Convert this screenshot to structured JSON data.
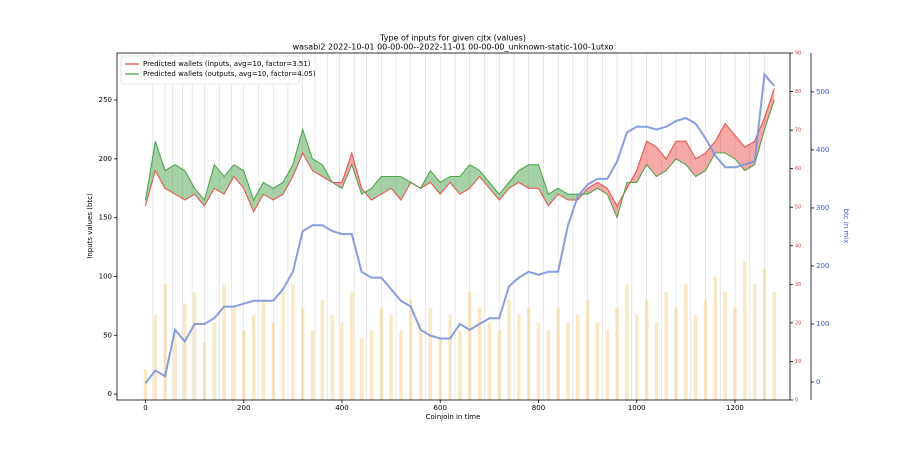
{
  "chart_data": {
    "type": "line",
    "title": "Type of inputs for given cjtx (values)",
    "subtitle": "wasabi2 2022-10-01 00-00-00--2022-11-01 00-00-00_unknown-static-100-1utxo",
    "x_label": "Coinjoin in time",
    "y_label": "Inputs values (btc)",
    "y3_label": "btc in mix",
    "legend": "upper left",
    "x": [
      0,
      20,
      40,
      60,
      80,
      100,
      120,
      140,
      160,
      180,
      200,
      220,
      240,
      260,
      280,
      300,
      320,
      340,
      360,
      380,
      400,
      420,
      440,
      460,
      480,
      500,
      520,
      540,
      560,
      580,
      600,
      620,
      640,
      660,
      680,
      700,
      720,
      740,
      760,
      780,
      800,
      820,
      840,
      860,
      880,
      900,
      920,
      940,
      960,
      980,
      1000,
      1020,
      1040,
      1060,
      1080,
      1100,
      1120,
      1140,
      1160,
      1180,
      1200,
      1220,
      1240,
      1260,
      1280
    ],
    "series": [
      {
        "name": "Predicted wallets (inputs, avg=10, factor=3.51)",
        "color": "#e8413c",
        "values": [
          160,
          190,
          175,
          170,
          165,
          170,
          160,
          175,
          170,
          185,
          175,
          155,
          170,
          165,
          170,
          185,
          205,
          190,
          185,
          180,
          180,
          205,
          175,
          165,
          170,
          175,
          165,
          180,
          175,
          180,
          170,
          180,
          170,
          175,
          185,
          175,
          165,
          175,
          180,
          175,
          175,
          160,
          170,
          165,
          165,
          175,
          180,
          175,
          160,
          175,
          190,
          215,
          210,
          200,
          215,
          215,
          200,
          205,
          215,
          230,
          220,
          210,
          215,
          235,
          260
        ]
      },
      {
        "name": "Predicted wallets (outputs, avg=10, factor=4.05)",
        "color": "#3a9a3a",
        "values": [
          165,
          215,
          190,
          195,
          190,
          175,
          165,
          195,
          185,
          195,
          190,
          165,
          180,
          175,
          180,
          195,
          225,
          200,
          195,
          180,
          175,
          195,
          170,
          175,
          185,
          185,
          185,
          180,
          175,
          190,
          180,
          185,
          185,
          195,
          190,
          180,
          170,
          180,
          190,
          195,
          195,
          170,
          175,
          170,
          170,
          170,
          175,
          170,
          150,
          180,
          180,
          195,
          185,
          190,
          200,
          195,
          185,
          190,
          205,
          205,
          200,
          190,
          195,
          225,
          250
        ]
      },
      {
        "color": "#7b93dc",
        "axis": "y3",
        "values": [
          -2,
          20,
          10,
          90,
          70,
          100,
          100,
          110,
          130,
          130,
          135,
          140,
          140,
          140,
          160,
          190,
          260,
          270,
          270,
          260,
          255,
          255,
          190,
          180,
          180,
          160,
          140,
          130,
          90,
          80,
          75,
          75,
          100,
          90,
          100,
          110,
          110,
          165,
          180,
          190,
          185,
          190,
          190,
          270,
          320,
          340,
          350,
          350,
          380,
          430,
          440,
          440,
          435,
          440,
          450,
          455,
          445,
          420,
          390,
          370,
          370,
          375,
          380,
          530,
          510
        ]
      }
    ],
    "bars": {
      "color": "#f5c97a",
      "axis": "y2",
      "values": [
        8,
        22,
        30,
        18,
        25,
        28,
        15,
        20,
        30,
        24,
        18,
        22,
        26,
        20,
        28,
        30,
        24,
        18,
        26,
        22,
        20,
        28,
        16,
        18,
        24,
        22,
        18,
        26,
        20,
        24,
        16,
        22,
        18,
        28,
        24,
        20,
        18,
        26,
        22,
        24,
        20,
        18,
        24,
        20,
        22,
        26,
        20,
        18,
        24,
        30,
        22,
        26,
        20,
        28,
        24,
        30,
        22,
        26,
        32,
        28,
        24,
        36,
        30,
        34,
        28
      ]
    },
    "vlines": [
      15,
      40,
      55,
      75,
      95,
      120,
      150,
      175,
      200,
      230,
      260,
      290,
      320,
      345,
      370,
      395,
      425,
      450,
      480,
      510,
      540,
      570,
      600,
      630,
      660,
      690,
      720,
      750,
      780,
      810,
      840,
      870,
      900,
      930,
      960,
      990,
      1020,
      1050,
      1080,
      1110,
      1140,
      1170,
      1200,
      1230,
      1260
    ],
    "xlim": [
      -58,
      1312
    ],
    "xticks": [
      0,
      200,
      400,
      600,
      800,
      1000,
      1200
    ],
    "ylim": [
      -5,
      290
    ],
    "yticks": [
      0,
      50,
      100,
      150,
      200,
      250
    ],
    "y2lim": [
      0,
      90
    ],
    "y2ticks": [
      0,
      10,
      20,
      30,
      40,
      50,
      60,
      70,
      80,
      90
    ],
    "y2color": "#e8413c",
    "y3lim": [
      -31,
      567
    ],
    "y3ticks": [
      0,
      100,
      200,
      300,
      400,
      500
    ],
    "y3color": "#3b5bd6"
  }
}
